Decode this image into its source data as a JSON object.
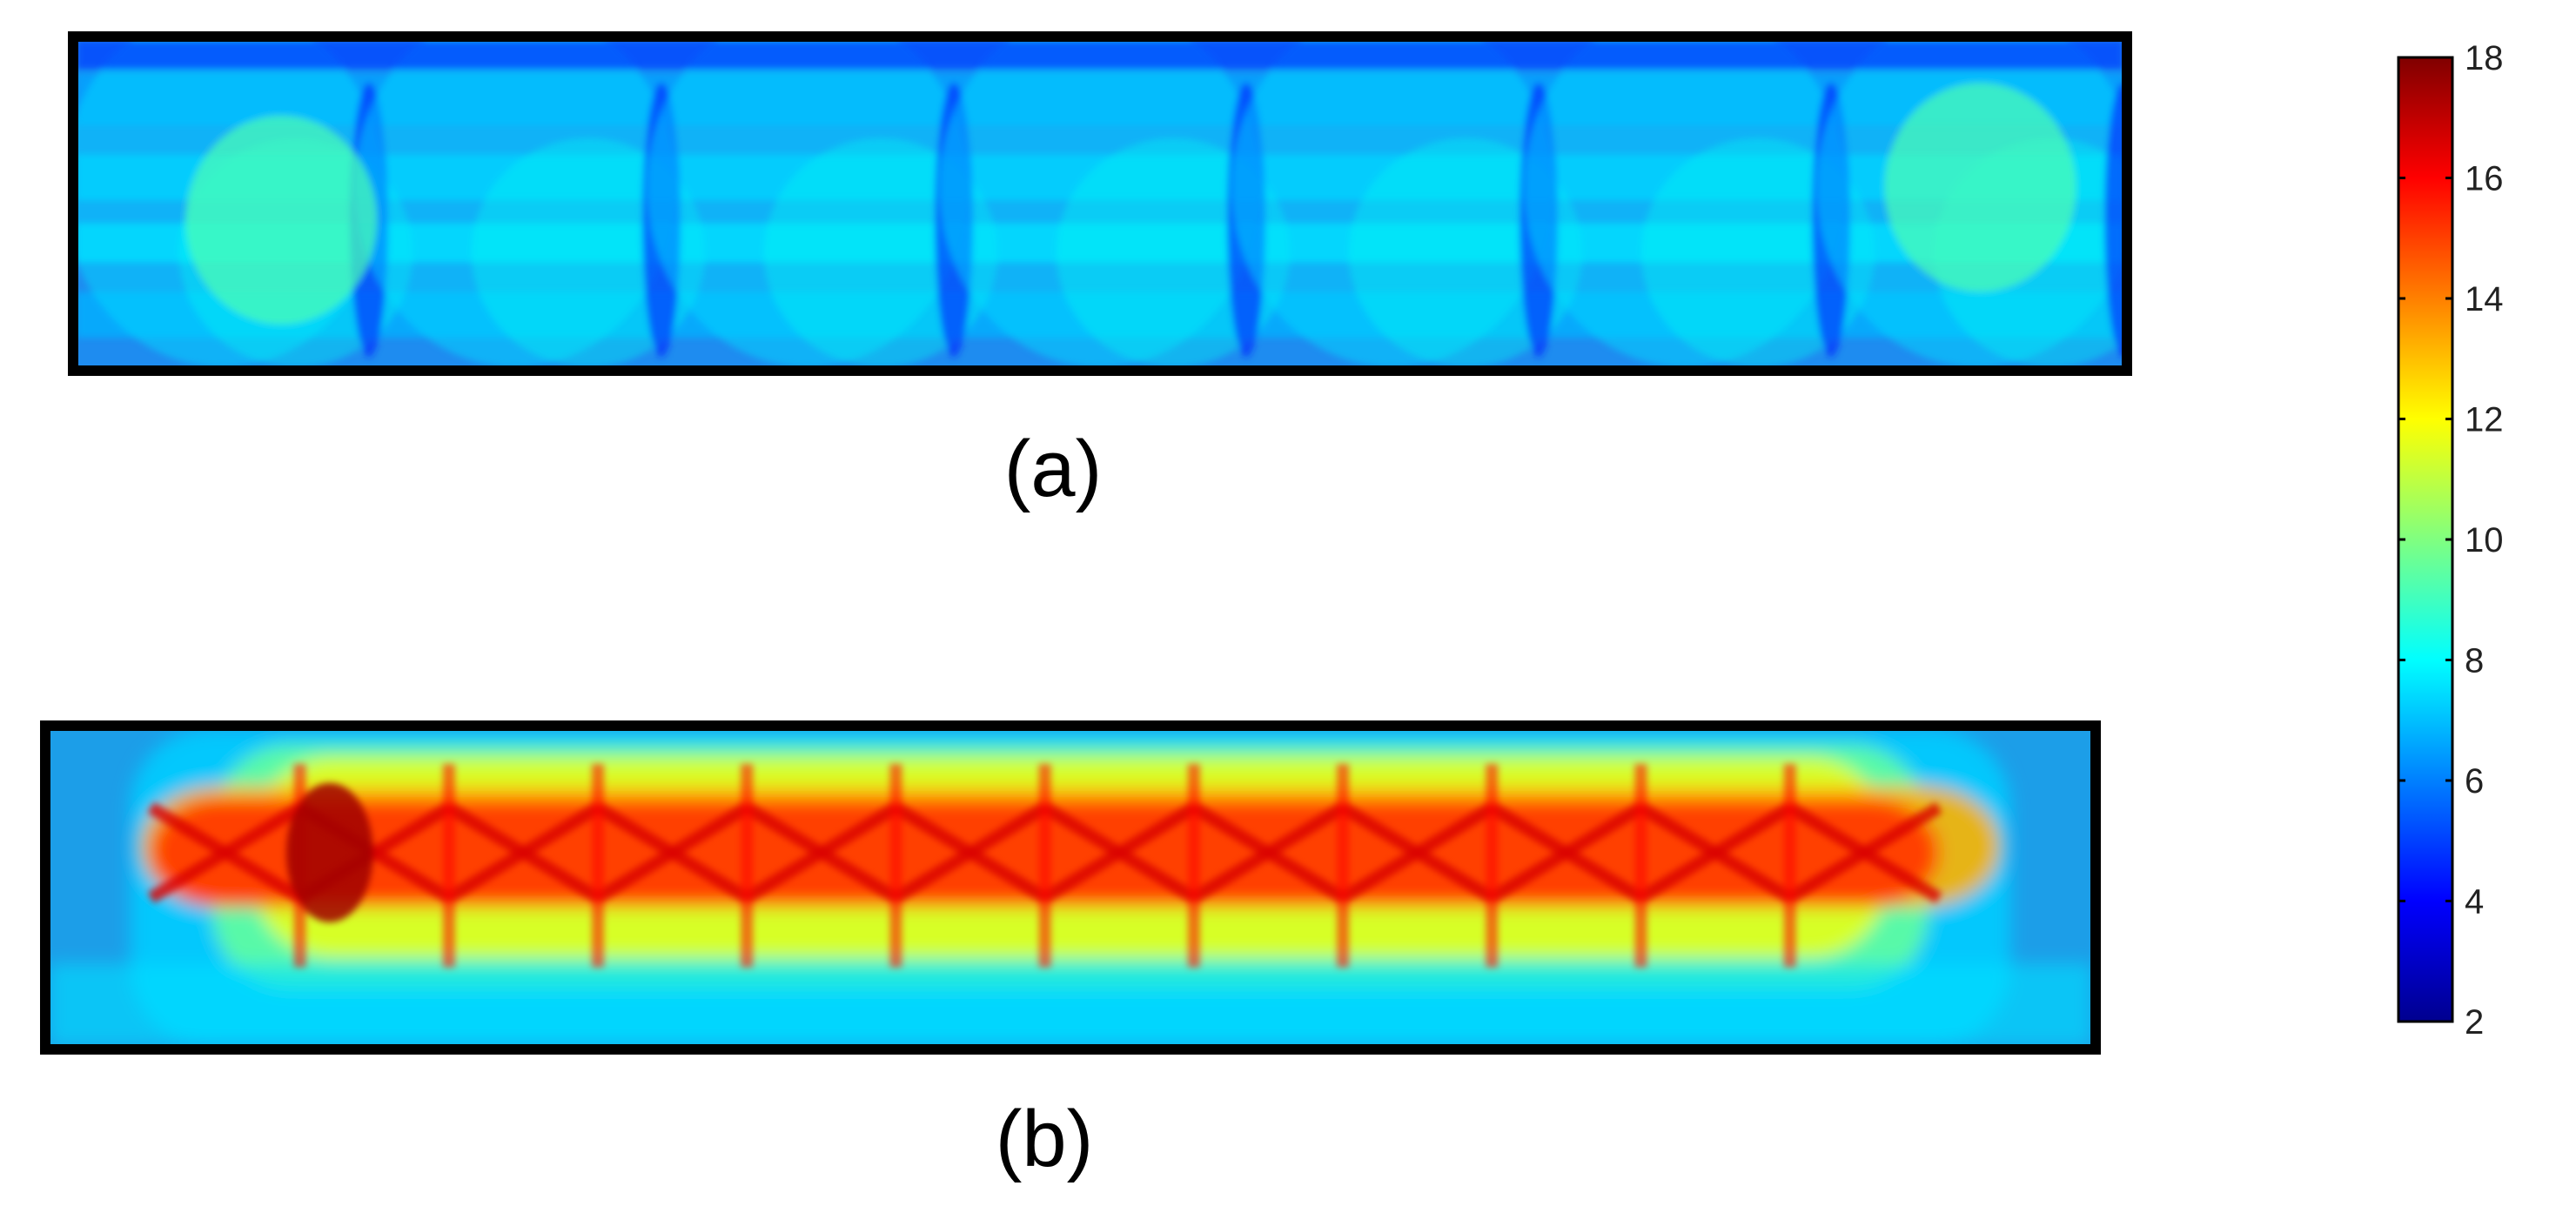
{
  "chart_data": [
    {
      "type": "heatmap",
      "panel_label": "(a)",
      "grid": false,
      "value_range": [
        4,
        10
      ],
      "colorscale": "jet",
      "description_values": {
        "background_level": 6,
        "low_level": 4,
        "high_level": 10,
        "hotspot_count": 7
      }
    },
    {
      "type": "heatmap",
      "panel_label": "(b)",
      "grid": false,
      "value_range": [
        4,
        17.5
      ],
      "colorscale": "jet",
      "description_values": {
        "core_level": 15,
        "core_peak": 17.5,
        "edge_level": 6,
        "cell_count": 12
      }
    }
  ],
  "colorbar": {
    "min": 2,
    "max": 18,
    "ticks": [
      "2",
      "4",
      "6",
      "8",
      "10",
      "12",
      "14",
      "16",
      "18"
    ],
    "colorscale": "jet",
    "colors": [
      "#00008f",
      "#0000ff",
      "#0080ff",
      "#00ffff",
      "#80ff80",
      "#ffff00",
      "#ff8000",
      "#ff0000",
      "#800000"
    ]
  }
}
